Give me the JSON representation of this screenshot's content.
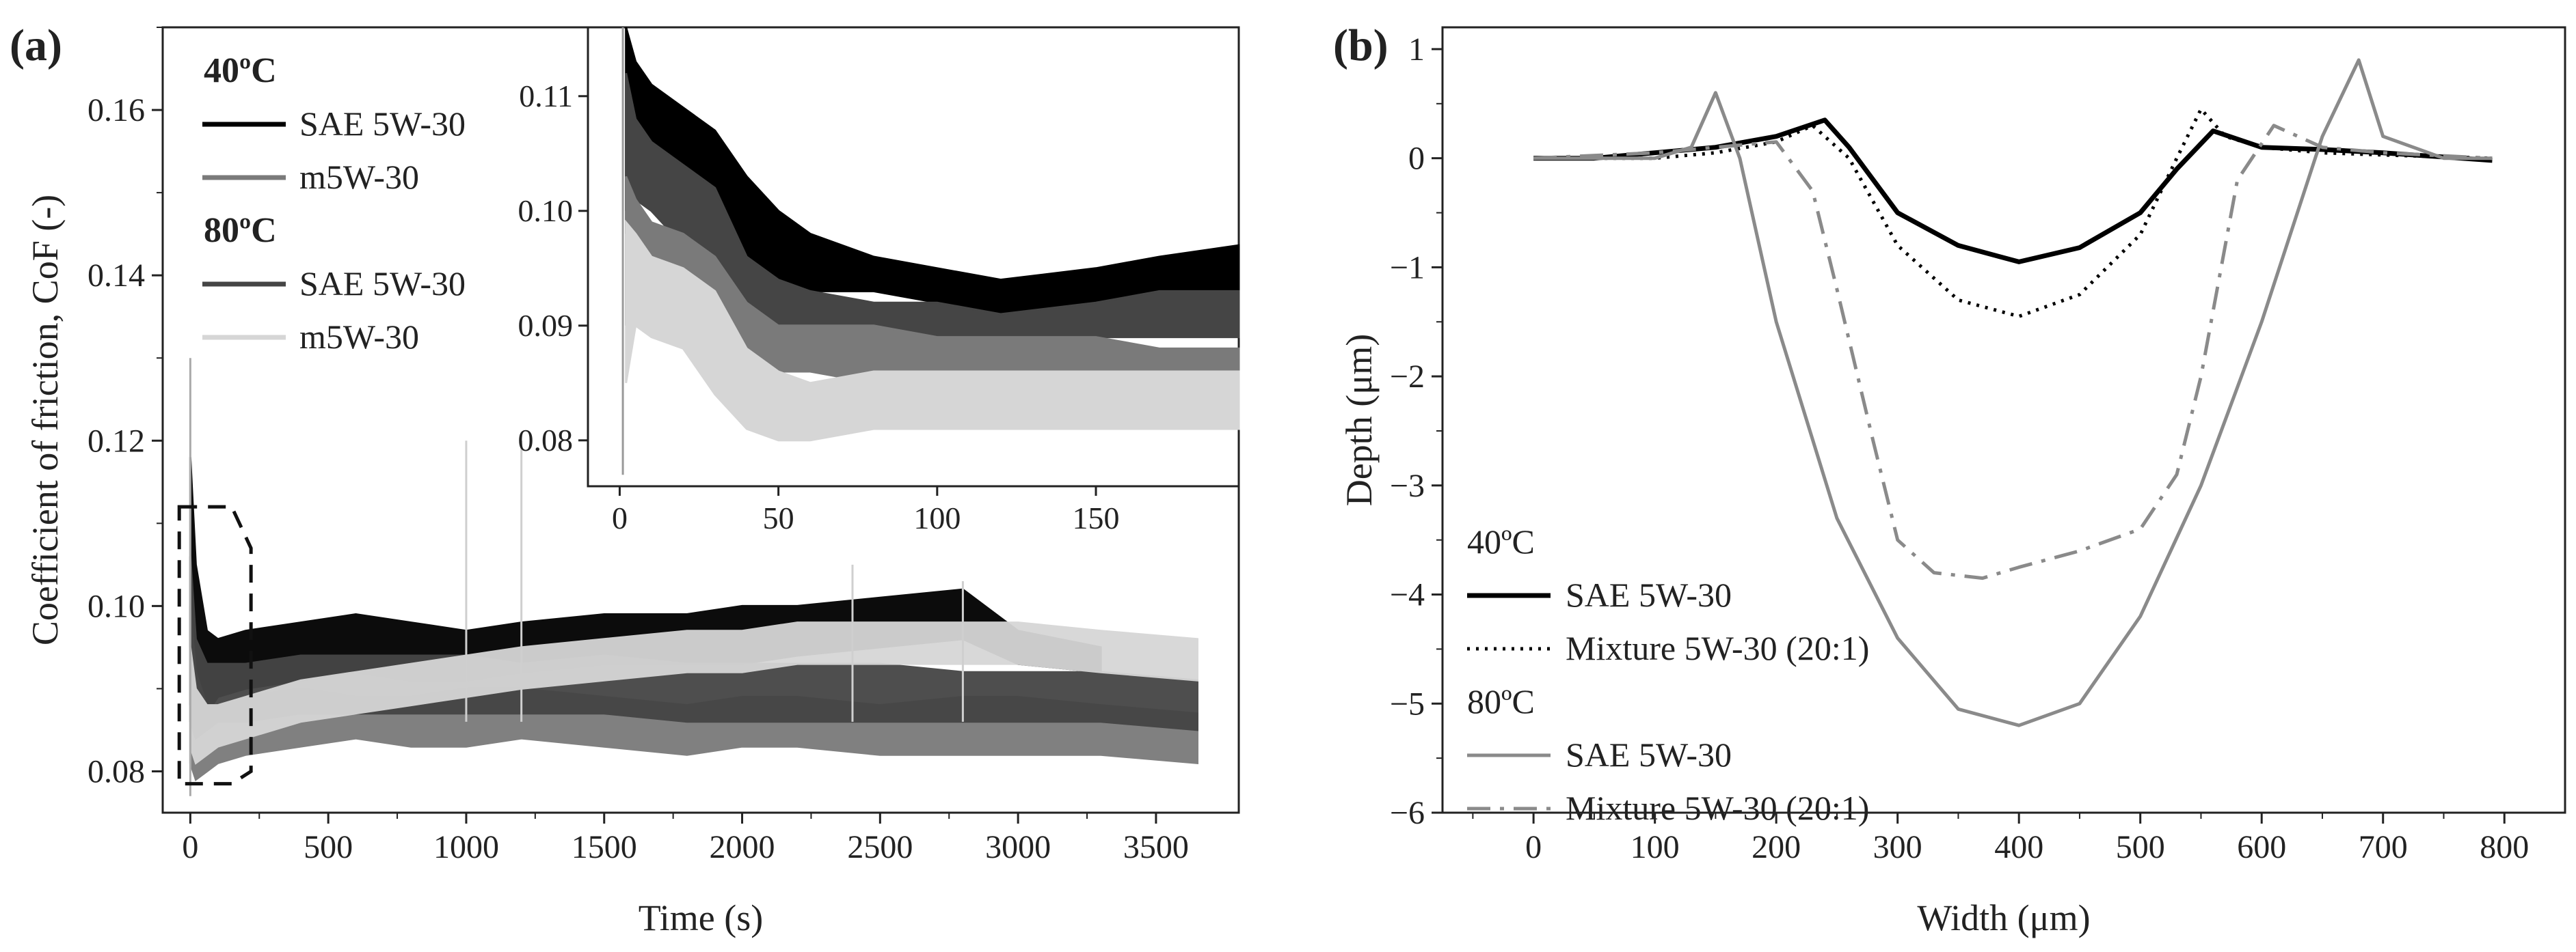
{
  "chart_data": [
    {
      "panel_label": "(a)",
      "type": "line",
      "xlabel": "Time (s)",
      "ylabel": "Coefficient of friction, CoF (-)",
      "xlim": [
        -100,
        3800
      ],
      "ylim": [
        0.075,
        0.17
      ],
      "xticks": [
        0,
        500,
        1000,
        1500,
        2000,
        2500,
        3000,
        3500
      ],
      "yticks": [
        0.08,
        0.1,
        0.12,
        0.14,
        0.16
      ],
      "ytick_labels": [
        "0.08",
        "0.10",
        "0.12",
        "0.14",
        "0.16"
      ],
      "legend_groups": [
        {
          "heading": "40ºC",
          "entries": [
            "SAE 5W-30",
            "m5W-30"
          ]
        },
        {
          "heading": "80ºC",
          "entries": [
            "SAE 5W-30",
            "m5W-30"
          ]
        }
      ],
      "series": [
        {
          "name": "SAE 5W-30 (40ºC)",
          "color": "#000000",
          "x": [
            0,
            20,
            60,
            100,
            200,
            400,
            600,
            800,
            1000,
            1200,
            1500,
            1800,
            2000,
            2200,
            2500,
            2800,
            3000,
            3300
          ],
          "y_low": [
            0.088,
            0.086,
            0.087,
            0.089,
            0.09,
            0.091,
            0.092,
            0.091,
            0.091,
            0.092,
            0.093,
            0.093,
            0.093,
            0.094,
            0.095,
            0.096,
            0.093,
            0.092
          ],
          "y_high": [
            0.118,
            0.105,
            0.097,
            0.096,
            0.097,
            0.098,
            0.099,
            0.098,
            0.097,
            0.098,
            0.099,
            0.099,
            0.1,
            0.1,
            0.101,
            0.102,
            0.097,
            0.095
          ]
        },
        {
          "name": "m5W-30 (40ºC)",
          "color": "#7a7a7a",
          "x": [
            0,
            20,
            60,
            100,
            200,
            400,
            600,
            800,
            1000,
            1200,
            1500,
            1800,
            2000,
            2200,
            2500,
            2800,
            3000,
            3300,
            3650
          ],
          "y_low": [
            0.081,
            0.079,
            0.08,
            0.081,
            0.082,
            0.083,
            0.084,
            0.083,
            0.083,
            0.084,
            0.083,
            0.082,
            0.083,
            0.083,
            0.082,
            0.082,
            0.082,
            0.082,
            0.081
          ],
          "y_high": [
            0.1,
            0.092,
            0.088,
            0.088,
            0.089,
            0.09,
            0.089,
            0.089,
            0.09,
            0.09,
            0.089,
            0.088,
            0.089,
            0.089,
            0.088,
            0.089,
            0.089,
            0.088,
            0.087
          ]
        },
        {
          "name": "SAE 5W-30 (80ºC)",
          "color": "#454545",
          "x": [
            0,
            20,
            60,
            100,
            200,
            400,
            600,
            800,
            1000,
            1200,
            1500,
            1800,
            2000,
            2200,
            2500,
            2800,
            3000,
            3300,
            3650
          ],
          "y_low": [
            0.086,
            0.084,
            0.085,
            0.086,
            0.086,
            0.087,
            0.087,
            0.087,
            0.087,
            0.087,
            0.087,
            0.086,
            0.086,
            0.086,
            0.086,
            0.086,
            0.086,
            0.086,
            0.085
          ],
          "y_high": [
            0.106,
            0.096,
            0.093,
            0.093,
            0.093,
            0.094,
            0.094,
            0.094,
            0.094,
            0.093,
            0.094,
            0.093,
            0.093,
            0.093,
            0.093,
            0.092,
            0.092,
            0.092,
            0.091
          ]
        },
        {
          "name": "m5W-30 (80ºC)",
          "color": "#d6d6d6",
          "x": [
            0,
            20,
            60,
            100,
            200,
            400,
            600,
            800,
            1000,
            1200,
            1500,
            1800,
            2000,
            2200,
            2500,
            2800,
            3000,
            3300,
            3650
          ],
          "y_low": [
            0.083,
            0.081,
            0.082,
            0.083,
            0.084,
            0.086,
            0.087,
            0.088,
            0.089,
            0.09,
            0.091,
            0.092,
            0.092,
            0.093,
            0.093,
            0.093,
            0.093,
            0.092,
            0.091
          ],
          "y_high": [
            0.095,
            0.09,
            0.088,
            0.088,
            0.089,
            0.091,
            0.092,
            0.093,
            0.094,
            0.095,
            0.096,
            0.097,
            0.097,
            0.098,
            0.098,
            0.098,
            0.098,
            0.097,
            0.096
          ]
        }
      ],
      "inset": {
        "xlim": [
          -10,
          195
        ],
        "ylim": [
          0.076,
          0.116
        ],
        "xticks": [
          0,
          50,
          100,
          150
        ],
        "yticks": [
          0.08,
          0.09,
          0.1,
          0.11
        ],
        "ytick_labels": [
          "0.08",
          "0.09",
          "0.10",
          "0.11"
        ],
        "series": [
          {
            "name": "SAE 5W-30 (40ºC)",
            "color": "#000000",
            "x": [
              2,
              5,
              10,
              20,
              30,
              40,
              50,
              60,
              80,
              100,
              120,
              150,
              170,
              195
            ],
            "y_low": [
              0.1,
              0.104,
              0.103,
              0.101,
              0.098,
              0.094,
              0.093,
              0.093,
              0.093,
              0.092,
              0.091,
              0.092,
              0.093,
              0.093
            ],
            "y_high": [
              0.116,
              0.113,
              0.111,
              0.109,
              0.107,
              0.103,
              0.1,
              0.098,
              0.096,
              0.095,
              0.094,
              0.095,
              0.096,
              0.097
            ]
          },
          {
            "name": "SAE 5W-30 (80ºC)",
            "color": "#454545",
            "x": [
              2,
              5,
              10,
              20,
              30,
              40,
              50,
              60,
              80,
              100,
              120,
              150,
              170,
              195
            ],
            "y_low": [
              0.098,
              0.101,
              0.1,
              0.097,
              0.092,
              0.09,
              0.089,
              0.089,
              0.089,
              0.089,
              0.088,
              0.089,
              0.089,
              0.089
            ],
            "y_high": [
              0.112,
              0.108,
              0.106,
              0.104,
              0.102,
              0.096,
              0.094,
              0.093,
              0.092,
              0.092,
              0.091,
              0.092,
              0.093,
              0.093
            ]
          },
          {
            "name": "m5W-30 (40ºC)",
            "color": "#7a7a7a",
            "x": [
              2,
              5,
              10,
              20,
              30,
              40,
              50,
              60,
              80,
              100,
              120,
              150,
              170,
              195
            ],
            "y_low": [
              0.09,
              0.093,
              0.092,
              0.091,
              0.088,
              0.086,
              0.086,
              0.086,
              0.085,
              0.085,
              0.084,
              0.084,
              0.083,
              0.082
            ],
            "y_high": [
              0.103,
              0.101,
              0.099,
              0.098,
              0.096,
              0.092,
              0.09,
              0.09,
              0.09,
              0.089,
              0.089,
              0.089,
              0.088,
              0.088
            ]
          },
          {
            "name": "m5W-30 (80ºC)",
            "color": "#d6d6d6",
            "x": [
              2,
              5,
              10,
              20,
              30,
              40,
              50,
              60,
              80,
              100,
              120,
              150,
              170,
              195
            ],
            "y_low": [
              0.085,
              0.09,
              0.089,
              0.088,
              0.084,
              0.081,
              0.08,
              0.08,
              0.081,
              0.081,
              0.081,
              0.081,
              0.081,
              0.081
            ],
            "y_high": [
              0.099,
              0.098,
              0.096,
              0.095,
              0.093,
              0.088,
              0.086,
              0.085,
              0.086,
              0.086,
              0.086,
              0.086,
              0.086,
              0.086
            ]
          }
        ]
      }
    },
    {
      "panel_label": "(b)",
      "type": "line",
      "xlabel": "Width (μm)",
      "ylabel": "Depth (μm)",
      "xlim": [
        -75,
        850
      ],
      "ylim": [
        -6,
        1.2
      ],
      "xticks": [
        0,
        100,
        200,
        300,
        400,
        500,
        600,
        700,
        800
      ],
      "yticks": [
        1,
        0,
        -1,
        -2,
        -3,
        -4,
        -5,
        -6
      ],
      "ytick_labels": [
        "1",
        "0",
        "−1",
        "−2",
        "−3",
        "−4",
        "−5",
        "−6"
      ],
      "legend_groups": [
        {
          "heading": "40ºC",
          "entries": [
            "SAE 5W-30",
            "Mixture 5W-30 (20:1)"
          ]
        },
        {
          "heading": "80ºC",
          "entries": [
            "SAE 5W-30",
            "Mixture 5W-30 (20:1)"
          ]
        }
      ],
      "series": [
        {
          "name": "SAE 5W-30 (40ºC)",
          "color": "#000000",
          "dash": "solid",
          "width": 7,
          "x": [
            0,
            50,
            100,
            150,
            200,
            240,
            260,
            300,
            350,
            400,
            450,
            500,
            530,
            560,
            600,
            650,
            700,
            790
          ],
          "y": [
            0.0,
            0.0,
            0.05,
            0.1,
            0.2,
            0.35,
            0.1,
            -0.5,
            -0.8,
            -0.95,
            -0.82,
            -0.5,
            -0.1,
            0.25,
            0.1,
            0.08,
            0.05,
            -0.02
          ]
        },
        {
          "name": "Mixture 5W-30 (20:1)",
          "color": "#000000",
          "dash": "dotted",
          "width": 5,
          "x": [
            0,
            50,
            100,
            150,
            200,
            230,
            260,
            300,
            350,
            400,
            450,
            500,
            530,
            550,
            570,
            600,
            650,
            700,
            790
          ],
          "y": [
            0.0,
            0.0,
            0.0,
            0.05,
            0.15,
            0.3,
            0.0,
            -0.8,
            -1.3,
            -1.45,
            -1.25,
            -0.7,
            0.0,
            0.45,
            0.2,
            0.1,
            0.05,
            0.03,
            0.0
          ]
        },
        {
          "name": "SAE 5W-30 (80ºC)",
          "color": "#8a8a8a",
          "dash": "solid",
          "width": 5,
          "x": [
            0,
            100,
            130,
            150,
            170,
            200,
            250,
            300,
            350,
            400,
            450,
            500,
            550,
            600,
            650,
            680,
            700,
            750,
            790
          ],
          "y": [
            0.0,
            0.0,
            0.1,
            0.6,
            0.0,
            -1.5,
            -3.3,
            -4.4,
            -5.05,
            -5.2,
            -5.0,
            -4.2,
            -3.0,
            -1.5,
            0.2,
            0.9,
            0.2,
            0.0,
            0.0
          ]
        },
        {
          "name": "Mixture 5W-30 (20:1)",
          "color": "#8a8a8a",
          "dash": "dashdot",
          "width": 5,
          "x": [
            0,
            100,
            150,
            200,
            230,
            250,
            280,
            300,
            330,
            370,
            400,
            450,
            500,
            530,
            550,
            580,
            610,
            650,
            700,
            790
          ],
          "y": [
            0.0,
            0.05,
            0.1,
            0.15,
            -0.3,
            -1.2,
            -2.6,
            -3.5,
            -3.8,
            -3.85,
            -3.75,
            -3.6,
            -3.4,
            -2.9,
            -2.0,
            -0.2,
            0.3,
            0.1,
            0.05,
            0.0
          ]
        }
      ]
    }
  ],
  "colors": {
    "black": "#000000",
    "dark_gray": "#454545",
    "mid_gray": "#7a7a7a",
    "light_gray": "#d6d6d6",
    "profile_gray": "#8a8a8a"
  }
}
